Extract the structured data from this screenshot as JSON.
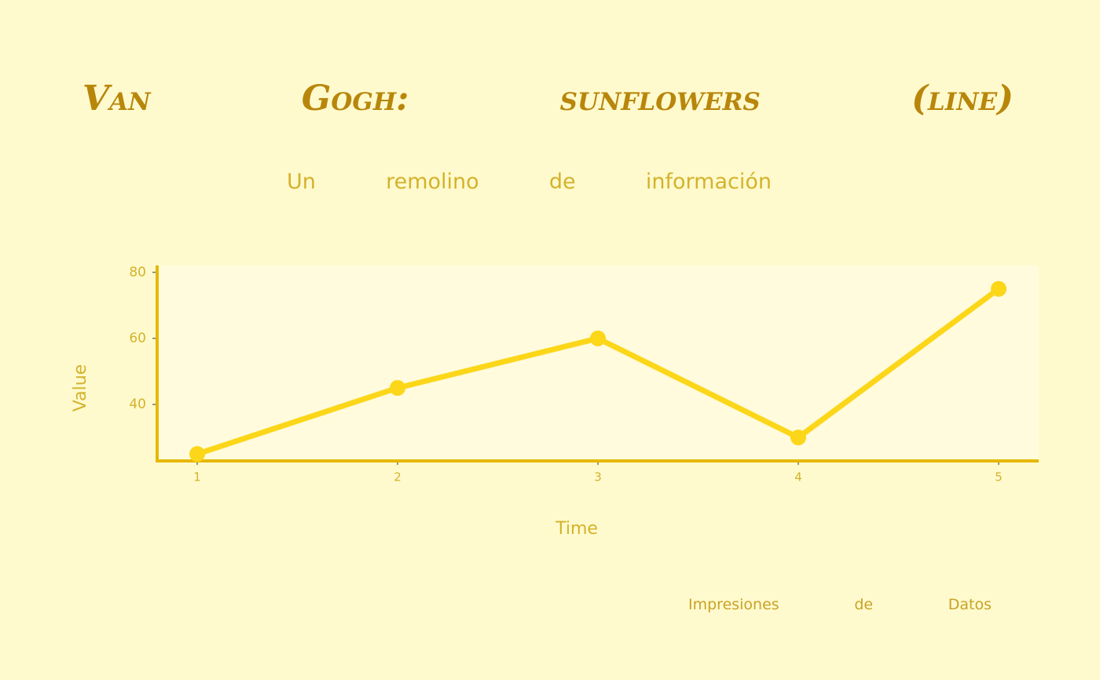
{
  "chart_data": {
    "type": "line",
    "title": "Van Gogh: sunflowers (line)",
    "subtitle": "Un remolino de información",
    "footer": "Impresiones de Datos",
    "x_label": "Time",
    "y_label": "Value",
    "x": [
      1,
      2,
      3,
      4,
      5
    ],
    "xlim": [
      0.8,
      5.2
    ],
    "xticks": [
      1,
      2,
      3,
      4,
      5
    ],
    "ylim": [
      22.9,
      82.1
    ],
    "yticks": [
      40,
      60,
      80
    ],
    "series": [
      {
        "name": "Value",
        "color": "#fcd619",
        "values": [
          25,
          45,
          60,
          30,
          75
        ]
      }
    ]
  }
}
